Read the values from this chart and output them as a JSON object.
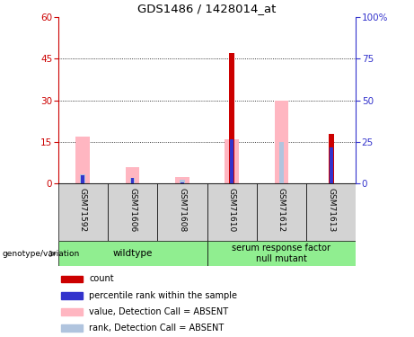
{
  "title": "GDS1486 / 1428014_at",
  "samples": [
    "GSM71592",
    "GSM71606",
    "GSM71608",
    "GSM71610",
    "GSM71612",
    "GSM71613"
  ],
  "count_values": [
    0,
    0,
    0,
    47,
    0,
    18
  ],
  "rank_values": [
    3,
    2,
    0.5,
    16,
    0,
    13
  ],
  "value_absent": [
    17,
    6,
    2.5,
    16,
    30,
    0
  ],
  "rank_absent": [
    3.5,
    2,
    1.5,
    0,
    15,
    14
  ],
  "ylim_left": [
    0,
    60
  ],
  "ylim_right": [
    0,
    100
  ],
  "yticks_left": [
    0,
    15,
    30,
    45,
    60
  ],
  "yticks_right": [
    0,
    25,
    50,
    75,
    100
  ],
  "ytick_right_labels": [
    "0",
    "25",
    "50",
    "75",
    "100%"
  ],
  "bw_absent": 0.28,
  "bw_rank_absent": 0.1,
  "bw_count": 0.1,
  "bw_rank": 0.07,
  "colors": {
    "count": "#cc0000",
    "rank": "#3333cc",
    "value_absent": "#ffb6c1",
    "rank_absent": "#b0c4de",
    "group_bg": "#90ee90",
    "sample_bg": "#d3d3d3",
    "axis_left": "#cc0000",
    "axis_right": "#3333cc"
  },
  "legend_items": [
    {
      "color": "#cc0000",
      "label": "count"
    },
    {
      "color": "#3333cc",
      "label": "percentile rank within the sample"
    },
    {
      "color": "#ffb6c1",
      "label": "value, Detection Call = ABSENT"
    },
    {
      "color": "#b0c4de",
      "label": "rank, Detection Call = ABSENT"
    }
  ],
  "group1_name": "wildtype",
  "group2_name": "serum response factor\nnull mutant",
  "geno_label": "genotype/variation"
}
